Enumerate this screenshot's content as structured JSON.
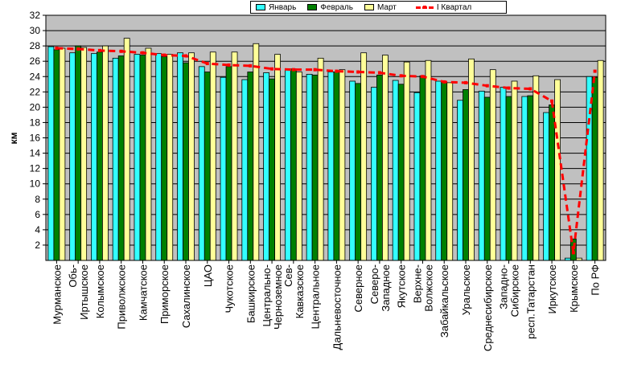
{
  "chart_data": {
    "type": "bar",
    "ylabel": "км",
    "ylim": [
      0,
      32
    ],
    "yticks": [
      2,
      4,
      6,
      8,
      10,
      12,
      14,
      16,
      18,
      20,
      22,
      24,
      26,
      28,
      30,
      32
    ],
    "grid": true,
    "legend_position": "top",
    "categories": [
      "Мурманское",
      "Обь-Иртышское",
      "Колымское",
      "Приволжское",
      "Камчатское",
      "Приморское",
      "Сахалинское",
      "ЦАО",
      "Чукотское",
      "Башкирское",
      "Центрально-Черноземное",
      "Сев-Кавказское",
      "Центральное",
      "Дальневосточное",
      "Северное",
      "Северо-Западное",
      "Якутское",
      "Верхне-Волжское",
      "Забайкальское",
      "Уральское",
      "Среднесибирское",
      "Западно-Сибирское",
      "респ.Татарстан",
      "Иркутское",
      "Крымское",
      "По РФ"
    ],
    "category_label_lines": [
      [
        "Мурманское"
      ],
      [
        "Обь-",
        "Иртышское"
      ],
      [
        "Колымское"
      ],
      [
        "Приволжское"
      ],
      [
        "Камчатское"
      ],
      [
        "Приморское"
      ],
      [
        "Сахалинское"
      ],
      [
        "ЦАО"
      ],
      [
        "Чукотское"
      ],
      [
        "Башкирское"
      ],
      [
        "Центрально-",
        "Черноземное"
      ],
      [
        "Сев-",
        "Кавказское"
      ],
      [
        "Центральное"
      ],
      [
        "Дальневосточное"
      ],
      [
        "Северное"
      ],
      [
        "Северо-",
        "Западное"
      ],
      [
        "Якутское"
      ],
      [
        "Верхне-",
        "Волжское"
      ],
      [
        "Забайкальское"
      ],
      [
        "Уральское"
      ],
      [
        "Среднесибирское"
      ],
      [
        "Западно-",
        "Сибирское"
      ],
      [
        "респ.Татарстан"
      ],
      [
        "Иркутское"
      ],
      [
        "Крымское"
      ],
      [
        "По РФ"
      ]
    ],
    "series": [
      {
        "name": "Январь",
        "kind": "bar",
        "color": "#33ffff",
        "values": [
          27.9,
          27.1,
          27.0,
          26.4,
          26.9,
          27.0,
          27.1,
          25.3,
          23.9,
          23.6,
          24.5,
          25.0,
          24.3,
          24.6,
          23.4,
          22.6,
          23.5,
          21.9,
          23.4,
          20.9,
          22.1,
          22.6,
          21.4,
          19.3,
          0.3,
          24.0
        ]
      },
      {
        "name": "Февраль",
        "kind": "bar",
        "color": "#008000",
        "values": [
          27.5,
          28.0,
          27.2,
          26.7,
          26.8,
          26.6,
          25.8,
          24.6,
          25.3,
          24.6,
          23.7,
          25.0,
          24.2,
          24.6,
          23.1,
          24.2,
          23.0,
          24.1,
          23.3,
          22.3,
          21.3,
          21.4,
          21.5,
          20.3,
          2.8,
          23.9
        ]
      },
      {
        "name": "Март",
        "kind": "bar",
        "color": "#ffff99",
        "values": [
          27.7,
          27.8,
          28.0,
          29.0,
          27.7,
          26.9,
          27.1,
          27.2,
          27.2,
          28.3,
          26.9,
          24.6,
          26.4,
          24.9,
          27.1,
          26.8,
          25.9,
          26.1,
          23.2,
          26.3,
          24.9,
          23.4,
          24.1,
          23.6,
          0.3,
          26.1
        ]
      },
      {
        "name": "I Квартал",
        "kind": "line",
        "color": "#ff0000",
        "values": [
          27.7,
          27.6,
          27.4,
          27.3,
          27.1,
          26.8,
          26.7,
          25.7,
          25.5,
          25.4,
          25.0,
          24.9,
          24.9,
          24.7,
          24.6,
          24.5,
          24.1,
          24.0,
          23.3,
          23.2,
          22.8,
          22.5,
          22.4,
          20.8,
          1.0,
          24.7
        ]
      }
    ]
  }
}
